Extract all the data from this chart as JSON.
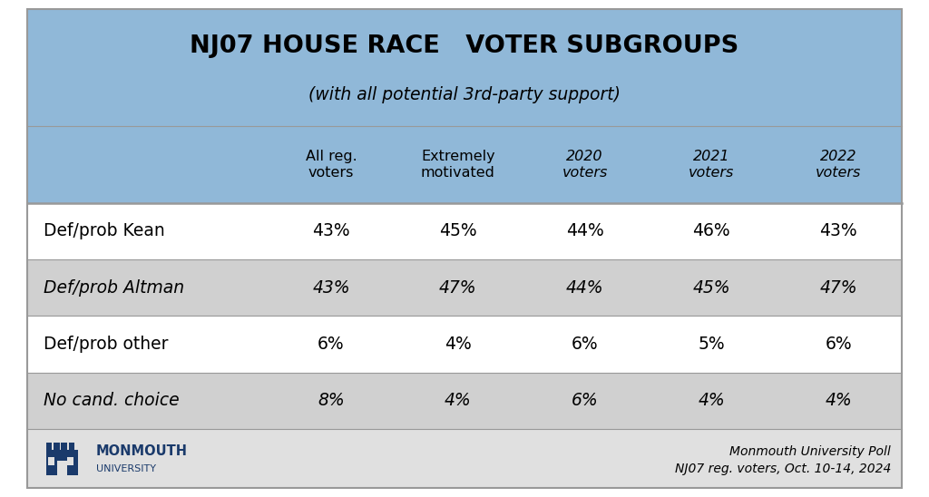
{
  "title": "NJ07 HOUSE RACE   VOTER SUBGROUPS",
  "subtitle_pre": "(with all potential 3",
  "subtitle_sup": "rd",
  "subtitle_post": "-party support)",
  "col_headers": [
    "All reg.\nvoters",
    "Extremely\nmotivated",
    "2020\nvoters",
    "2021\nvoters",
    "2022\nvoters"
  ],
  "row_labels": [
    "Def/prob Kean",
    "Def/prob Altman",
    "Def/prob other",
    "No cand. choice"
  ],
  "data": [
    [
      "43%",
      "45%",
      "44%",
      "46%",
      "43%"
    ],
    [
      "43%",
      "47%",
      "44%",
      "45%",
      "47%"
    ],
    [
      "6%",
      "4%",
      "6%",
      "5%",
      "6%"
    ],
    [
      "8%",
      "4%",
      "6%",
      "4%",
      "4%"
    ]
  ],
  "header_bg": "#90b8d8",
  "row_bg_white": "#ffffff",
  "row_bg_gray": "#d0d0d0",
  "footer_bg": "#e0e0e0",
  "outer_bg": "#ffffff",
  "border_color": "#999999",
  "title_color": "#000000",
  "monmouth_blue": "#1a3a6b",
  "footnote_right_1": "Monmouth University Poll",
  "footnote_right_2": "NJ07 reg. voters, Oct. 10-14, 2024",
  "row_italic": [
    false,
    true,
    false,
    true
  ],
  "header_italic": [
    false,
    false,
    true,
    true,
    true
  ],
  "row_bold": [
    true,
    true,
    true,
    true
  ]
}
